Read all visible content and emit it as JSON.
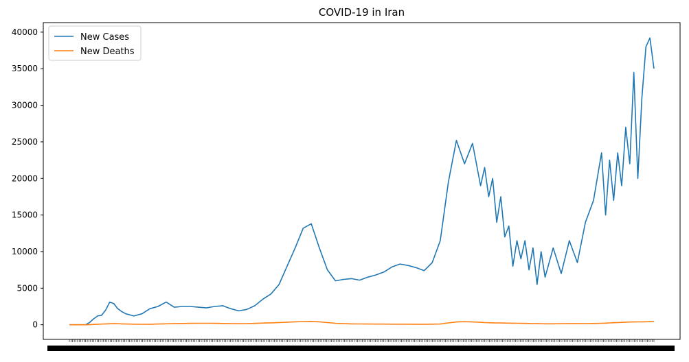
{
  "chart_data": {
    "type": "line",
    "title": "COVID-19 in Iran",
    "xlabel": "",
    "ylabel": "",
    "ylim": [
      -2000,
      41300
    ],
    "yticks": [
      0,
      5000,
      10000,
      15000,
      20000,
      25000,
      30000,
      35000,
      40000
    ],
    "x_tick_note": "dense daily date ticks (illegible overlap)",
    "x_tick_count": 360,
    "grid": false,
    "legend_position": "top-left",
    "colors": {
      "cases": "#1f77b4",
      "deaths": "#ff7f0e"
    },
    "x": [
      0,
      10,
      20,
      25,
      30,
      35,
      40,
      45,
      50,
      55,
      60,
      65,
      70,
      80,
      90,
      100,
      110,
      120,
      130,
      140,
      150,
      160,
      170,
      180,
      190,
      200,
      210,
      220,
      230,
      240,
      250,
      260,
      270,
      280,
      290,
      300,
      310,
      320,
      330,
      340,
      350,
      360
    ],
    "series": [
      {
        "name": "New Cases",
        "values": [
          0,
          0,
          0,
          300,
          800,
          1200,
          1300,
          2000,
          3100,
          2900,
          2200,
          1800,
          1500,
          1200,
          1500,
          2200,
          2500,
          3100,
          2400,
          2500,
          2500,
          2400,
          2300,
          2500,
          2600,
          2200,
          1900,
          2100,
          2600,
          3500,
          4200,
          5500,
          8000,
          10500,
          13200,
          13800,
          10500,
          7500,
          6000,
          6200,
          6300,
          6100
        ]
      },
      {
        "name": "New Deaths",
        "values": [
          0,
          0,
          0,
          10,
          40,
          70,
          90,
          120,
          140,
          150,
          140,
          120,
          100,
          80,
          60,
          70,
          100,
          130,
          150,
          170,
          190,
          200,
          200,
          190,
          170,
          150,
          140,
          150,
          180,
          230,
          260,
          300,
          350,
          400,
          440,
          460,
          400,
          300,
          200,
          150,
          120,
          110
        ]
      }
    ],
    "x_more": [
      370,
      380,
      390,
      400,
      410,
      420,
      430,
      440,
      450,
      460,
      470,
      480,
      490,
      500,
      510,
      515,
      520,
      525,
      530,
      535,
      540,
      545,
      550,
      555,
      560,
      565,
      570,
      575,
      580,
      585,
      590,
      600,
      610,
      620,
      630,
      640,
      650,
      660,
      665,
      670,
      675,
      680,
      685,
      690,
      695,
      700,
      705,
      710,
      715,
      720,
      725
    ],
    "series_more": [
      {
        "name": "New Cases",
        "values": [
          6500,
          6800,
          7200,
          7900,
          8300,
          8100,
          7800,
          7400,
          8500,
          11500,
          19500,
          25200,
          22000,
          24800,
          19000,
          21500,
          17500,
          20000,
          14000,
          17500,
          12000,
          13500,
          8000,
          11500,
          9000,
          11500,
          7500,
          10500,
          5500,
          10000,
          6500,
          10500,
          7000,
          11500,
          8500,
          14000,
          17000,
          23500,
          15000,
          22500,
          17000,
          23500,
          19000,
          27000,
          22000,
          34500,
          20000,
          31000,
          38000,
          39200,
          35000
        ]
      },
      {
        "name": "New Deaths",
        "values": [
          100,
          90,
          90,
          80,
          80,
          80,
          70,
          70,
          80,
          100,
          250,
          380,
          420,
          380,
          330,
          300,
          280,
          260,
          250,
          240,
          230,
          220,
          210,
          200,
          190,
          180,
          170,
          160,
          150,
          140,
          130,
          130,
          140,
          150,
          150,
          160,
          170,
          200,
          220,
          250,
          280,
          300,
          320,
          350,
          370,
          380,
          390,
          400,
          410,
          420,
          430
        ]
      }
    ]
  }
}
